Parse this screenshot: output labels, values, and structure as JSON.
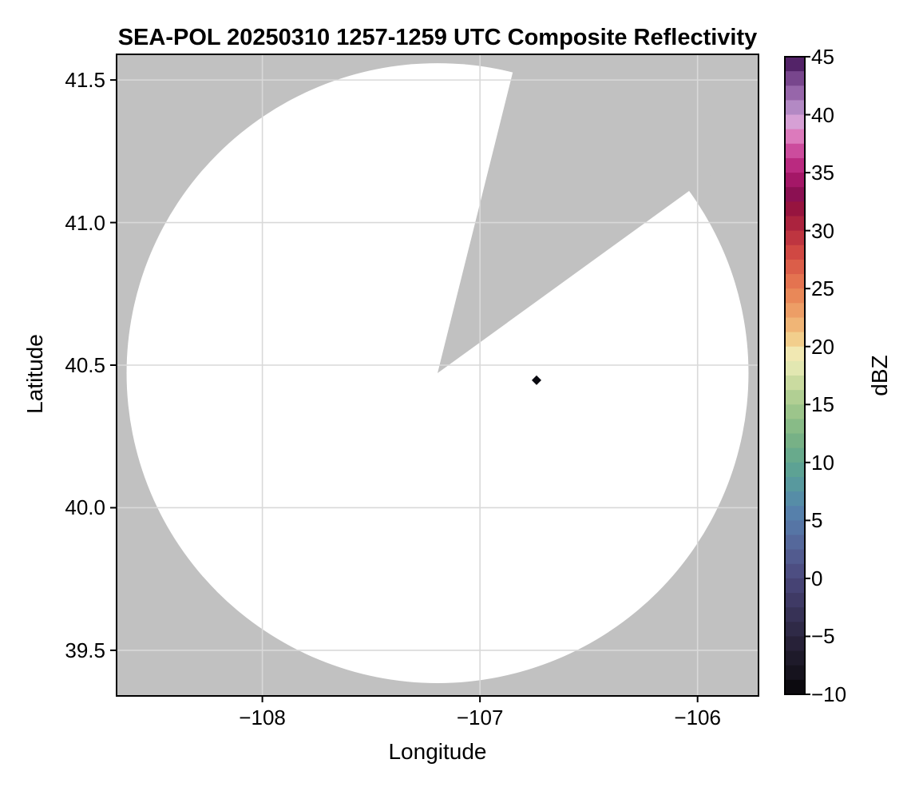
{
  "chart_data": {
    "type": "radar_composite_reflectivity_map",
    "title": "SEA-POL 20250310 1257-1259 UTC Composite Reflectivity",
    "xlabel": "Longitude",
    "ylabel": "Latitude",
    "grid": true,
    "xlim": [
      -108.67,
      -105.72
    ],
    "ylim": [
      39.34,
      41.59
    ],
    "xticks": [
      -108,
      -107,
      -106
    ],
    "xtick_labels": [
      "−108",
      "−107",
      "−106"
    ],
    "yticks": [
      41.5,
      41.0,
      40.5,
      40.0,
      39.5
    ],
    "ytick_labels": [
      "41.5",
      "41.0",
      "40.5",
      "40.0",
      "39.5"
    ],
    "colors": {
      "background": "#ffffff",
      "no_data_gray": "#c1c1c1",
      "coverage_white": "#ffffff",
      "gridline": "#d9d9d9",
      "frame": "#000000",
      "echo_marker": "#0a0a10"
    },
    "coverage": {
      "center_lon": -107.195,
      "center_lat": 40.472,
      "radius_lon_deg": 1.429,
      "radius_lat_deg": 1.087,
      "gap_azimuth_start_deg": 14,
      "gap_azimuth_end_deg": 54
    },
    "echoes": [
      {
        "lon": -106.74,
        "lat": 40.447,
        "value_dbz": 45
      }
    ],
    "colorbar": {
      "label": "dBZ",
      "min": -10,
      "max": 45,
      "ticks": [
        45,
        40,
        35,
        30,
        25,
        20,
        15,
        10,
        5,
        0,
        -5,
        -10
      ],
      "tick_labels": [
        "45",
        "40",
        "35",
        "30",
        "25",
        "20",
        "15",
        "10",
        "5",
        "0",
        "−5",
        "−10"
      ],
      "n_bands": 44,
      "stops": [
        {
          "v": -10,
          "c": "#070608"
        },
        {
          "v": -8,
          "c": "#17141f"
        },
        {
          "v": -6,
          "c": "#241f33"
        },
        {
          "v": -4,
          "c": "#322c4b"
        },
        {
          "v": -2,
          "c": "#3e3963"
        },
        {
          "v": 0,
          "c": "#4a477b"
        },
        {
          "v": 2,
          "c": "#535c90"
        },
        {
          "v": 4,
          "c": "#5671a3"
        },
        {
          "v": 6,
          "c": "#5684ad"
        },
        {
          "v": 8,
          "c": "#57989f"
        },
        {
          "v": 10,
          "c": "#60a78f"
        },
        {
          "v": 12,
          "c": "#78b285"
        },
        {
          "v": 14,
          "c": "#95c289"
        },
        {
          "v": 16,
          "c": "#b8d295"
        },
        {
          "v": 18,
          "c": "#e0e6ae"
        },
        {
          "v": 19,
          "c": "#f0f0c2"
        },
        {
          "v": 20,
          "c": "#f3da97"
        },
        {
          "v": 22,
          "c": "#f0b274"
        },
        {
          "v": 24,
          "c": "#ea8e5b"
        },
        {
          "v": 26,
          "c": "#e26d4d"
        },
        {
          "v": 28,
          "c": "#d24a43"
        },
        {
          "v": 30,
          "c": "#b52b3e"
        },
        {
          "v": 32,
          "c": "#95123f"
        },
        {
          "v": 33,
          "c": "#880f50"
        },
        {
          "v": 35,
          "c": "#b01b72"
        },
        {
          "v": 36.5,
          "c": "#c73f94"
        },
        {
          "v": 38,
          "c": "#dc74b8"
        },
        {
          "v": 39,
          "c": "#dfa0d6"
        },
        {
          "v": 40,
          "c": "#c69fd4"
        },
        {
          "v": 41,
          "c": "#a87cbb"
        },
        {
          "v": 42.5,
          "c": "#8a579e"
        },
        {
          "v": 44,
          "c": "#5f2d75"
        },
        {
          "v": 45,
          "c": "#3f1352"
        }
      ]
    }
  }
}
